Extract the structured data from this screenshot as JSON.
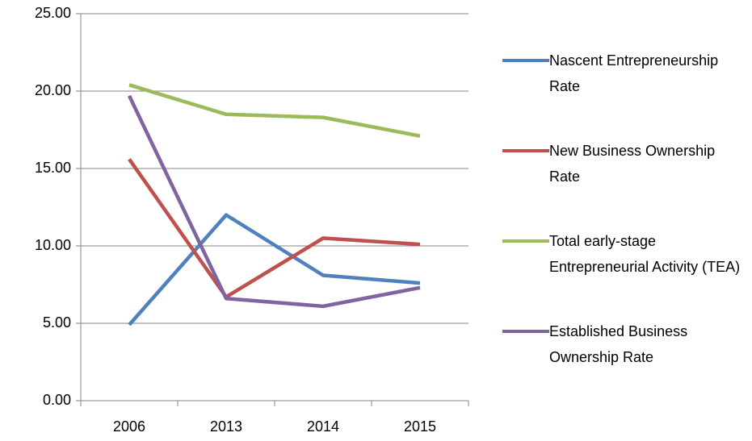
{
  "chart_data": {
    "type": "line",
    "categories": [
      "2006",
      "2013",
      "2014",
      "2015"
    ],
    "series": [
      {
        "name": "Nascent Entrepreneurship Rate",
        "color": "#4f81bd",
        "values": [
          4.9,
          12.0,
          8.1,
          7.6
        ]
      },
      {
        "name": "New Business Ownership Rate",
        "color": "#c0504d",
        "values": [
          15.6,
          6.7,
          10.5,
          10.1
        ]
      },
      {
        "name": "Total early-stage Entrepreneurial Activity (TEA)",
        "color": "#9bbb59",
        "values": [
          20.4,
          18.5,
          18.3,
          17.1
        ]
      },
      {
        "name": "Established Business Ownership Rate",
        "color": "#8064a2",
        "values": [
          19.7,
          6.6,
          6.1,
          7.3
        ]
      }
    ],
    "ylim": [
      0,
      25
    ],
    "yticks": [
      {
        "value": 0,
        "label": "0.00"
      },
      {
        "value": 5,
        "label": "5.00"
      },
      {
        "value": 10,
        "label": "10.00"
      },
      {
        "value": 15,
        "label": "15.00"
      },
      {
        "value": 20,
        "label": "20.00"
      },
      {
        "value": 25,
        "label": "25.00"
      }
    ],
    "grid": true,
    "legend": "right"
  }
}
